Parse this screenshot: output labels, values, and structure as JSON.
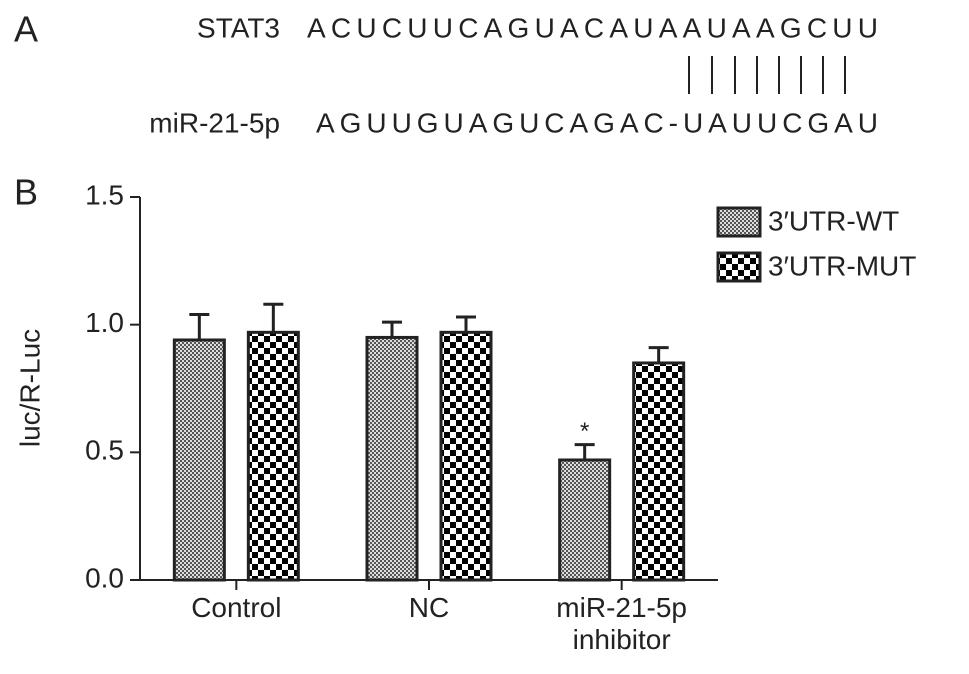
{
  "panel_a": {
    "label": "A",
    "rows": [
      {
        "name": "STAT3",
        "sequence": "ACUCUUCAGUACAUAAUAAGCUU"
      },
      {
        "name": "miR-21-5p",
        "sequence": "AGUUGUAGUCAGAC-UAUUCGAU"
      }
    ]
  },
  "chart_data": {
    "type": "bar",
    "panel_label": "B",
    "ylabel": "luc/R-Luc",
    "categories": [
      "Control",
      "NC",
      "miR-21-5p inhibitor"
    ],
    "series": [
      {
        "name": "3′UTR-WT",
        "color": "#555555",
        "pattern": "fine",
        "values": [
          0.94,
          0.95,
          0.47
        ],
        "errors": [
          0.1,
          0.06,
          0.06
        ],
        "annotations": [
          null,
          null,
          "*"
        ]
      },
      {
        "name": "3′UTR-MUT",
        "color": "#000000",
        "pattern": "coarse",
        "values": [
          0.97,
          0.97,
          0.85
        ],
        "errors": [
          0.11,
          0.06,
          0.06
        ]
      }
    ],
    "ylim": [
      0,
      1.5
    ],
    "yticks": [
      {
        "value": 0,
        "label": "0.0"
      },
      0.5,
      {
        "value": 1,
        "label": "1.0"
      },
      1.5
    ],
    "legend": "top-right"
  }
}
